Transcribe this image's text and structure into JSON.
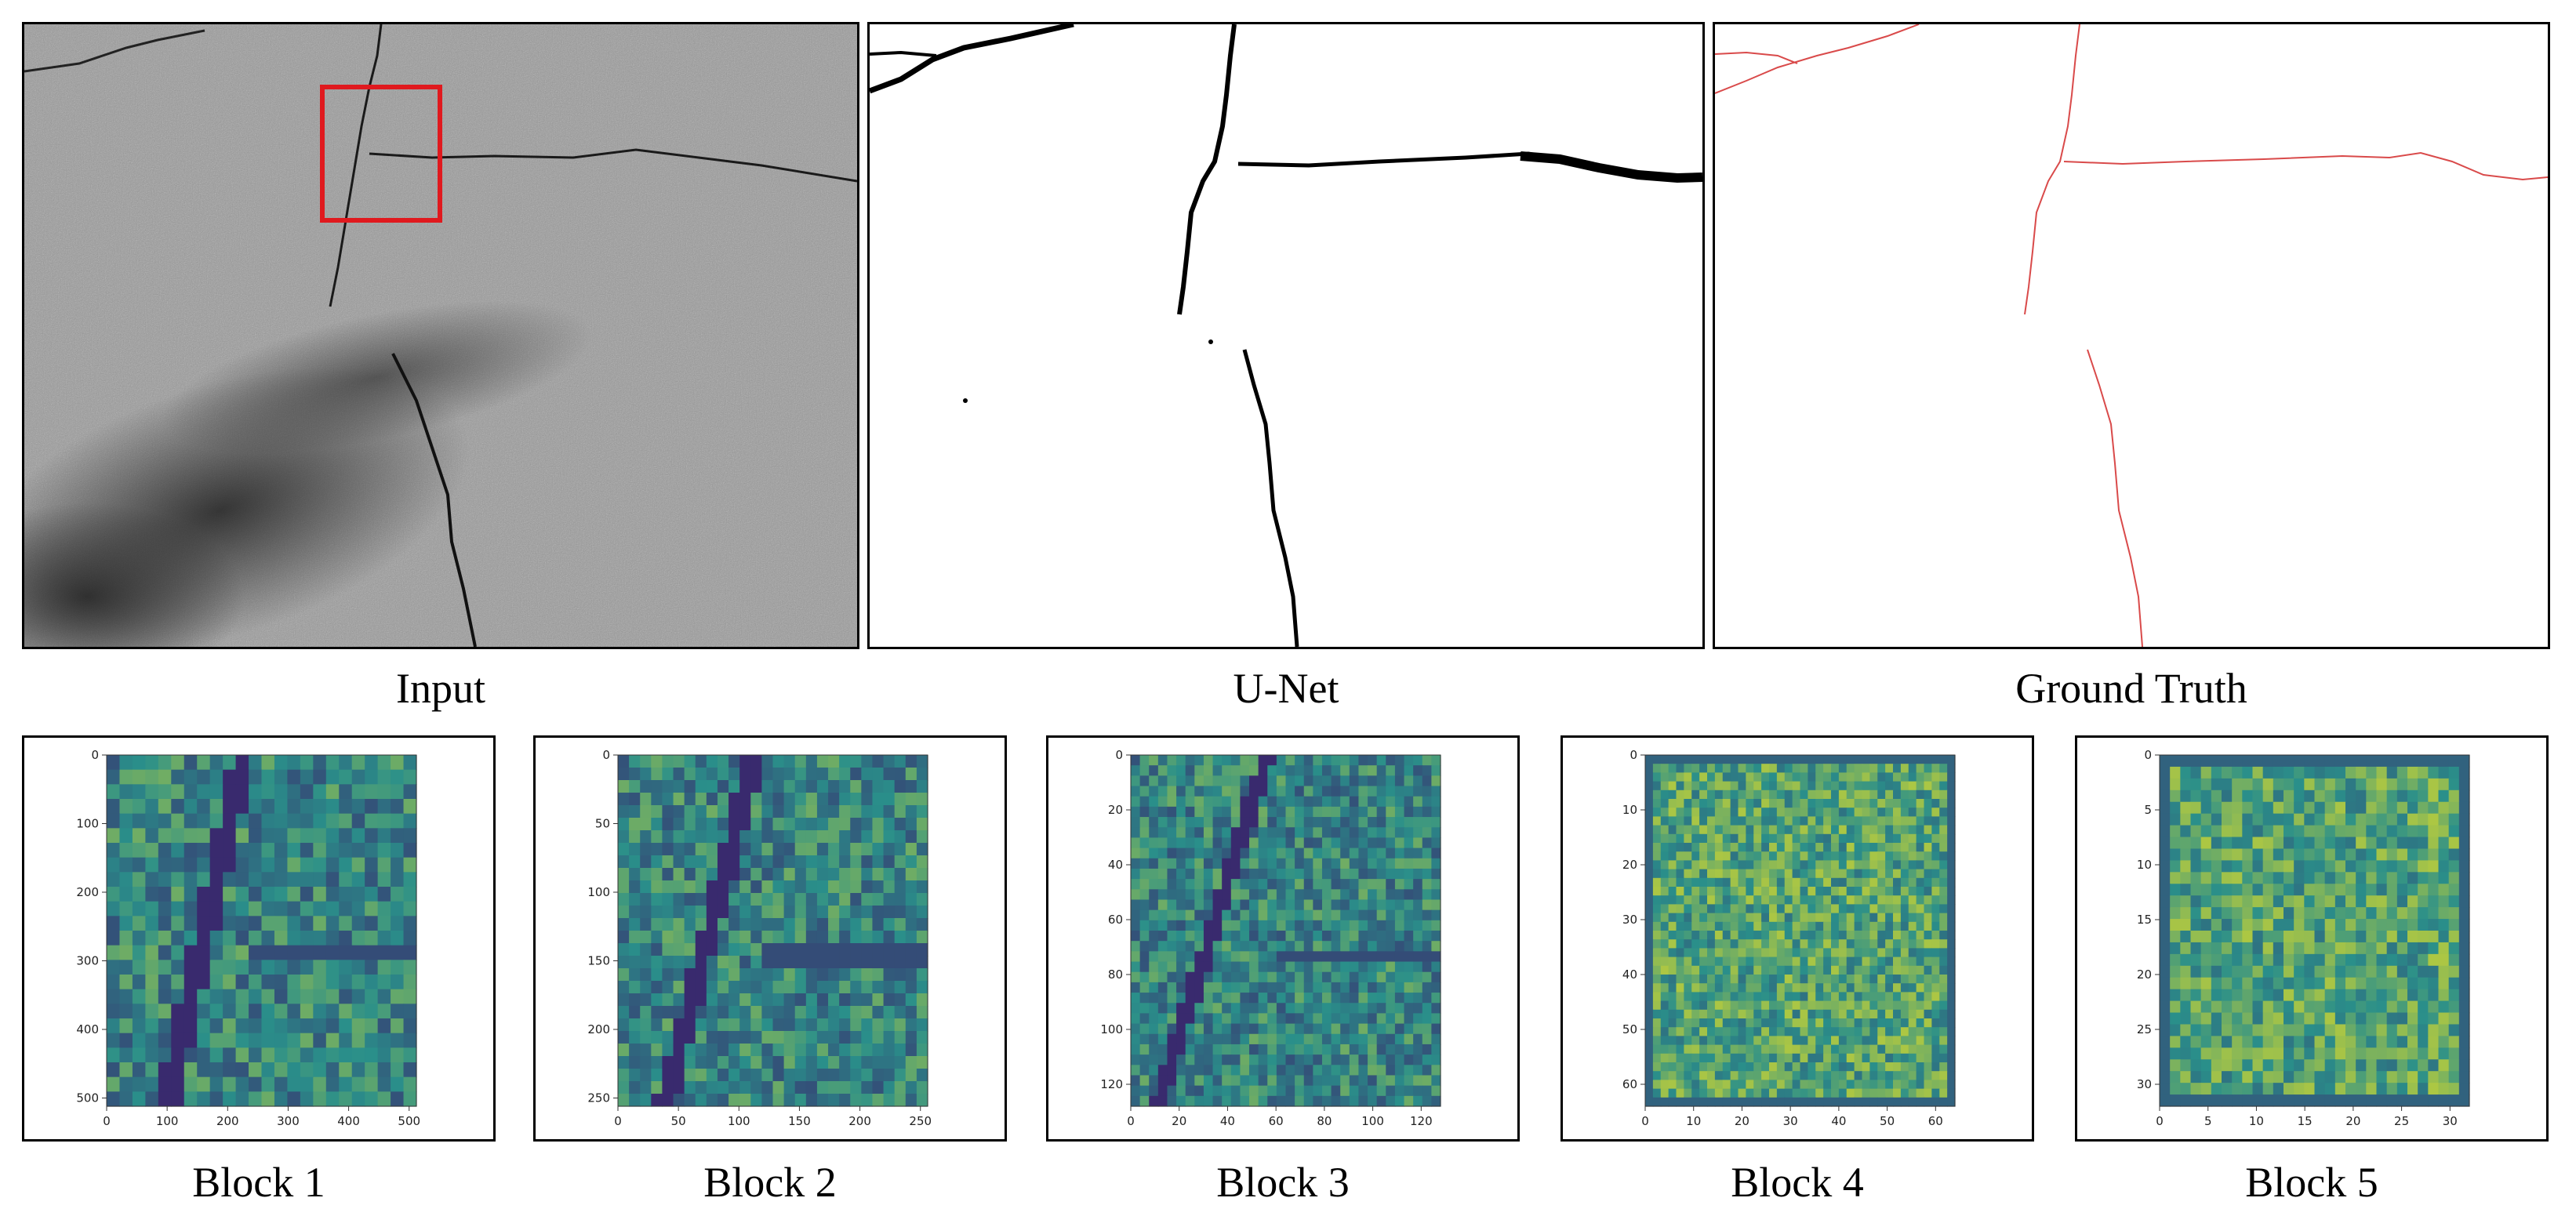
{
  "figure": {
    "top_captions": [
      "Input",
      "U-Net",
      "Ground Truth"
    ],
    "blocks": [
      {
        "caption": "Block 1",
        "x_ticks": [
          "0",
          "100",
          "200",
          "300",
          "400",
          "500"
        ],
        "y_ticks": [
          "0",
          "100",
          "200",
          "300",
          "400",
          "500"
        ],
        "max": 512
      },
      {
        "caption": "Block 2",
        "x_ticks": [
          "0",
          "50",
          "100",
          "150",
          "200",
          "250"
        ],
        "y_ticks": [
          "0",
          "50",
          "100",
          "150",
          "200",
          "250"
        ],
        "max": 256
      },
      {
        "caption": "Block 3",
        "x_ticks": [
          "0",
          "20",
          "40",
          "60",
          "80",
          "100",
          "120"
        ],
        "y_ticks": [
          "0",
          "20",
          "40",
          "60",
          "80",
          "100",
          "120"
        ],
        "max": 128
      },
      {
        "caption": "Block 4",
        "x_ticks": [
          "0",
          "10",
          "20",
          "30",
          "40",
          "50",
          "60"
        ],
        "y_ticks": [
          "0",
          "10",
          "20",
          "30",
          "40",
          "50",
          "60"
        ],
        "max": 64
      },
      {
        "caption": "Block 5",
        "x_ticks": [
          "0",
          "5",
          "10",
          "15",
          "20",
          "25",
          "30"
        ],
        "y_ticks": [
          "0",
          "5",
          "10",
          "15",
          "20",
          "25",
          "30"
        ],
        "max": 32
      }
    ],
    "colors": {
      "highlight_box": "#e0191e",
      "ground_truth_line": "#d94a4a",
      "heatmap_low": "#3b1f6b",
      "heatmap_mid": "#2a8f8a",
      "heatmap_high": "#f3e51d"
    }
  }
}
